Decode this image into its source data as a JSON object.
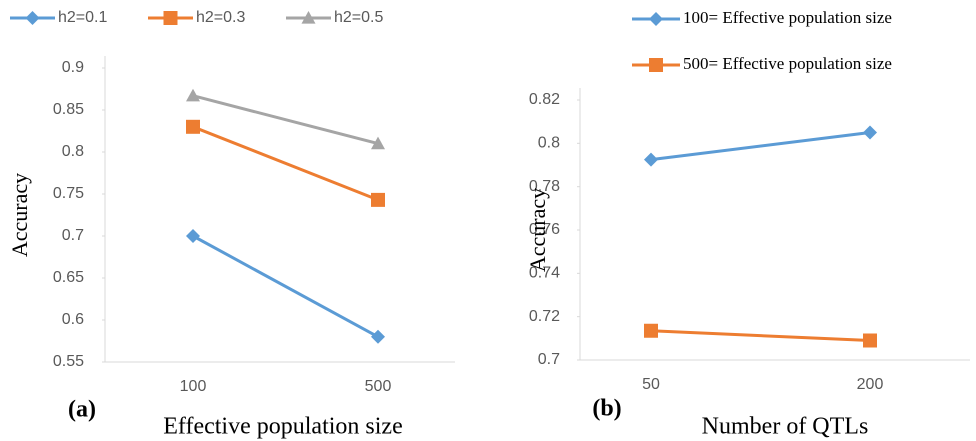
{
  "chart_data": [
    {
      "type": "line",
      "panel_label": "(a)",
      "x_label": "Effective population size",
      "y_label": "Accuracy",
      "categories": [
        "100",
        "500"
      ],
      "ylim": [
        0.55,
        0.9
      ],
      "yticks": [
        0.55,
        0.6,
        0.65,
        0.7,
        0.75,
        0.8,
        0.85,
        0.9
      ],
      "series": [
        {
          "name": "h2=0.1",
          "color": "#5b9bd5",
          "marker": "diamond",
          "values": [
            0.7,
            0.58
          ]
        },
        {
          "name": "h2=0.3",
          "color": "#ed7d31",
          "marker": "square",
          "values": [
            0.83,
            0.743
          ]
        },
        {
          "name": "h2=0.5",
          "color": "#a5a5a5",
          "marker": "triangle",
          "values": [
            0.867,
            0.81
          ]
        }
      ]
    },
    {
      "type": "line",
      "panel_label": "(b)",
      "x_label": "Number of QTLs",
      "y_label": "Accuracy",
      "categories": [
        "50",
        "200"
      ],
      "ylim": [
        0.7,
        0.82
      ],
      "yticks": [
        0.7,
        0.72,
        0.74,
        0.76,
        0.78,
        0.8,
        0.82
      ],
      "series": [
        {
          "name": "100= Effective population size",
          "color": "#5b9bd5",
          "marker": "diamond",
          "values": [
            0.7925,
            0.805
          ]
        },
        {
          "name": "500= Effective population size",
          "color": "#ed7d31",
          "marker": "square",
          "values": [
            0.7135,
            0.709
          ]
        }
      ]
    }
  ]
}
